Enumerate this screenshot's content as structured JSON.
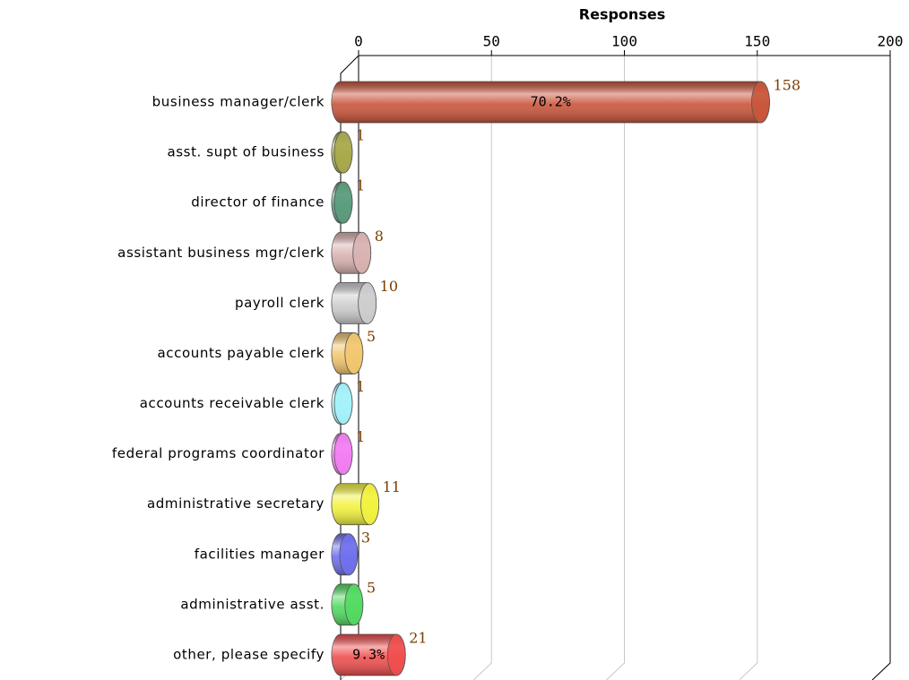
{
  "chart_data": {
    "type": "bar",
    "orientation": "horizontal",
    "x_label": "Responses",
    "categories": [
      "business manager/clerk",
      "asst. supt of business",
      "director of finance",
      "assistant business mgr/clerk",
      "payroll clerk",
      "accounts payable clerk",
      "accounts receivable clerk",
      "federal programs coordinator",
      "administrative secretary",
      "facilities manager",
      "administrative asst.",
      "other, please specify"
    ],
    "values": [
      158,
      1,
      1,
      8,
      10,
      5,
      1,
      1,
      11,
      3,
      5,
      21
    ],
    "percent_labels": [
      "70.2%",
      null,
      null,
      null,
      null,
      null,
      null,
      null,
      null,
      null,
      null,
      "9.3%"
    ],
    "colors": [
      "#c9553b",
      "#a9a94c",
      "#5b9c7c",
      "#d9b1b1",
      "#cdcdcd",
      "#f2c66e",
      "#a4f2fa",
      "#f37ef3",
      "#f2f23e",
      "#7070ee",
      "#52da62",
      "#f04e4e"
    ],
    "xlim": [
      0,
      200
    ],
    "xticks": [
      0,
      50,
      100,
      150,
      200
    ],
    "grid": true
  }
}
